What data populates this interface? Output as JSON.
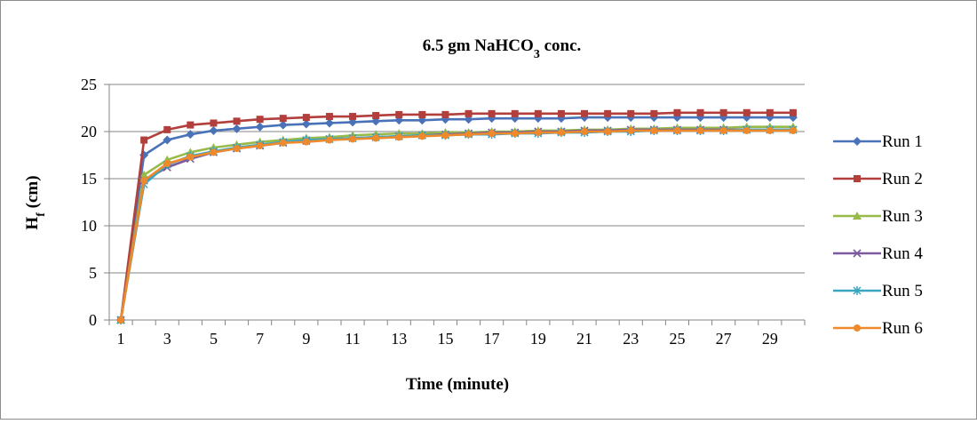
{
  "chart_data": {
    "type": "line",
    "title": "6.5 gm NaHCO",
    "title_sub": "3",
    "title_suffix": " conc.",
    "xlabel": "Time (minute)",
    "ylabel": "H",
    "ylabel_sub": "f",
    "ylabel_suffix": " (cm)",
    "ylim": [
      0,
      25
    ],
    "yticks": [
      "0",
      "5",
      "10",
      "15",
      "20",
      "25"
    ],
    "xlim": [
      1,
      30
    ],
    "xticks": [
      "1",
      "3",
      "5",
      "7",
      "9",
      "11",
      "13",
      "15",
      "17",
      "19",
      "21",
      "23",
      "25",
      "27",
      "29"
    ],
    "grid": "horizontal",
    "legend_position": "right",
    "x": [
      1,
      2,
      3,
      4,
      5,
      6,
      7,
      8,
      9,
      10,
      11,
      12,
      13,
      14,
      15,
      16,
      17,
      18,
      19,
      20,
      21,
      22,
      23,
      24,
      25,
      26,
      27,
      28,
      29,
      30
    ],
    "series": [
      {
        "name": "Run 1",
        "color": "#4a72b8",
        "marker": "diamond",
        "values": [
          0,
          17.5,
          19.1,
          19.7,
          20.1,
          20.3,
          20.5,
          20.7,
          20.8,
          20.9,
          21.0,
          21.1,
          21.2,
          21.2,
          21.3,
          21.3,
          21.4,
          21.4,
          21.4,
          21.4,
          21.5,
          21.5,
          21.5,
          21.5,
          21.5,
          21.5,
          21.5,
          21.5,
          21.5,
          21.5
        ]
      },
      {
        "name": "Run 2",
        "color": "#b23f3c",
        "marker": "square",
        "values": [
          0,
          19.1,
          20.2,
          20.7,
          20.9,
          21.1,
          21.3,
          21.4,
          21.5,
          21.6,
          21.6,
          21.7,
          21.8,
          21.8,
          21.8,
          21.9,
          21.9,
          21.9,
          21.9,
          21.9,
          21.9,
          21.9,
          21.9,
          21.9,
          22.0,
          22.0,
          22.0,
          22.0,
          22.0,
          22.0
        ]
      },
      {
        "name": "Run 3",
        "color": "#98ba48",
        "marker": "triangle",
        "values": [
          0,
          15.4,
          17.0,
          17.8,
          18.3,
          18.6,
          18.9,
          19.1,
          19.3,
          19.4,
          19.6,
          19.7,
          19.8,
          19.8,
          19.9,
          19.9,
          20.0,
          20.0,
          20.1,
          20.1,
          20.2,
          20.2,
          20.3,
          20.3,
          20.4,
          20.4,
          20.4,
          20.5,
          20.5,
          20.5
        ]
      },
      {
        "name": "Run 4",
        "color": "#7b5b9e",
        "marker": "x",
        "values": [
          0,
          14.8,
          16.2,
          17.1,
          17.8,
          18.2,
          18.5,
          18.8,
          19.0,
          19.2,
          19.3,
          19.4,
          19.5,
          19.6,
          19.7,
          19.8,
          19.9,
          19.9,
          20.0,
          20.0,
          20.1,
          20.1,
          20.2,
          20.2,
          20.2,
          20.2,
          20.2,
          20.2,
          20.2,
          20.2
        ]
      },
      {
        "name": "Run 5",
        "color": "#3ba6c0",
        "marker": "asterisk",
        "values": [
          0,
          14.4,
          16.5,
          17.4,
          17.9,
          18.3,
          18.6,
          18.9,
          19.1,
          19.2,
          19.3,
          19.4,
          19.5,
          19.6,
          19.6,
          19.7,
          19.7,
          19.8,
          19.8,
          19.9,
          19.9,
          20.0,
          20.0,
          20.1,
          20.1,
          20.1,
          20.1,
          20.2,
          20.2,
          20.2
        ]
      },
      {
        "name": "Run 6",
        "color": "#ef8a2c",
        "marker": "circle",
        "values": [
          0,
          14.8,
          16.6,
          17.3,
          17.8,
          18.2,
          18.5,
          18.8,
          18.9,
          19.1,
          19.2,
          19.3,
          19.4,
          19.5,
          19.6,
          19.7,
          19.8,
          19.8,
          19.9,
          19.9,
          20.0,
          20.0,
          20.1,
          20.1,
          20.1,
          20.1,
          20.1,
          20.1,
          20.1,
          20.1
        ]
      }
    ]
  }
}
